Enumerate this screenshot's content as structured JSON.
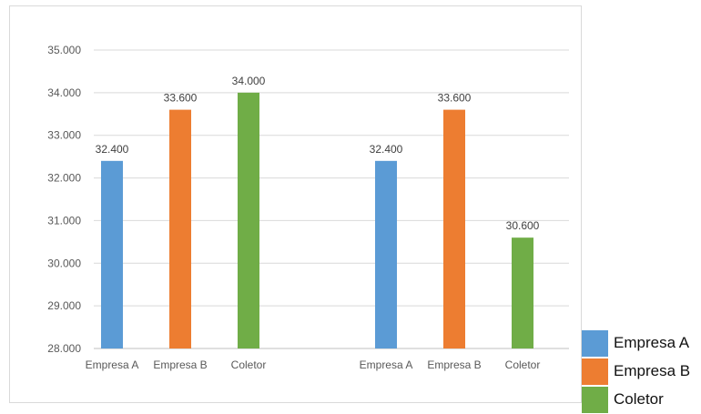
{
  "chart_data": {
    "type": "bar",
    "groups": [
      {
        "bars": [
          {
            "category": "Empresa A",
            "value": 32400,
            "label": "32.400",
            "color": "#5b9bd5"
          },
          {
            "category": "Empresa B",
            "value": 33600,
            "label": "33.600",
            "color": "#ed7d31"
          },
          {
            "category": "Coletor",
            "value": 34000,
            "label": "34.000",
            "color": "#70ad47"
          }
        ]
      },
      {
        "bars": [
          {
            "category": "Empresa A",
            "value": 32400,
            "label": "32.400",
            "color": "#5b9bd5"
          },
          {
            "category": "Empresa B",
            "value": 33600,
            "label": "33.600",
            "color": "#ed7d31"
          },
          {
            "category": "Coletor",
            "value": 30600,
            "label": "30.600",
            "color": "#70ad47"
          }
        ]
      }
    ],
    "ylim": [
      28000,
      35000
    ],
    "yticks": [
      {
        "value": 28000,
        "label": "28.000"
      },
      {
        "value": 29000,
        "label": "29.000"
      },
      {
        "value": 30000,
        "label": "30.000"
      },
      {
        "value": 31000,
        "label": "31.000"
      },
      {
        "value": 32000,
        "label": "32.000"
      },
      {
        "value": 33000,
        "label": "33.000"
      },
      {
        "value": 34000,
        "label": "34.000"
      },
      {
        "value": 35000,
        "label": "35.000"
      }
    ],
    "grid": true,
    "legend_position": "bottom-right",
    "legend": [
      {
        "label": "Empresa A",
        "color": "#5b9bd5"
      },
      {
        "label": "Empresa B",
        "color": "#ed7d31"
      },
      {
        "label": "Coletor",
        "color": "#70ad47"
      }
    ]
  }
}
